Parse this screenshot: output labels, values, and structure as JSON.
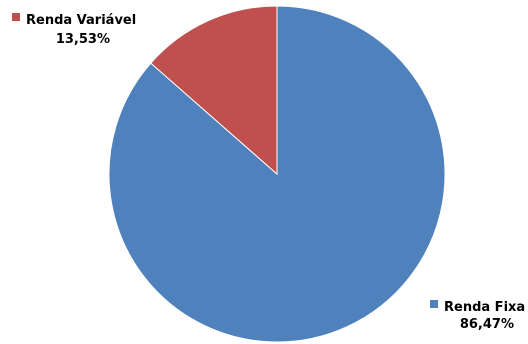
{
  "chart_data": {
    "type": "pie",
    "title": "",
    "slices": [
      {
        "label": "Renda Fixa",
        "value": 86.47,
        "value_label": "86,47%",
        "color": "#4f81bd"
      },
      {
        "label": "Renda Variável",
        "value": 13.53,
        "value_label": "13,53%",
        "color": "#c0504d"
      }
    ],
    "start_angle_deg": 0,
    "direction": "clockwise",
    "legend": "none",
    "data_labels": "outside with color key"
  }
}
